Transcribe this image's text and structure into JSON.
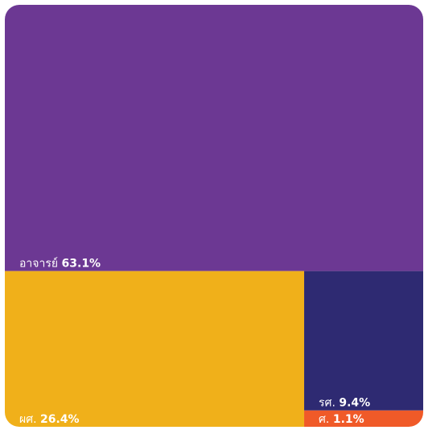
{
  "chart_data": {
    "type": "treemap",
    "title": "",
    "items": [
      {
        "label": "อาจารย์",
        "value": 63.1,
        "display": "63.1%",
        "color": "#6c3893"
      },
      {
        "label": "ผศ.",
        "value": 26.4,
        "display": "26.4%",
        "color": "#f0b01a"
      },
      {
        "label": "รศ.",
        "value": 9.4,
        "display": "9.4%",
        "color": "#2e2a72"
      },
      {
        "label": "ศ.",
        "value": 1.1,
        "display": "1.1%",
        "color": "#f05a28"
      }
    ]
  }
}
